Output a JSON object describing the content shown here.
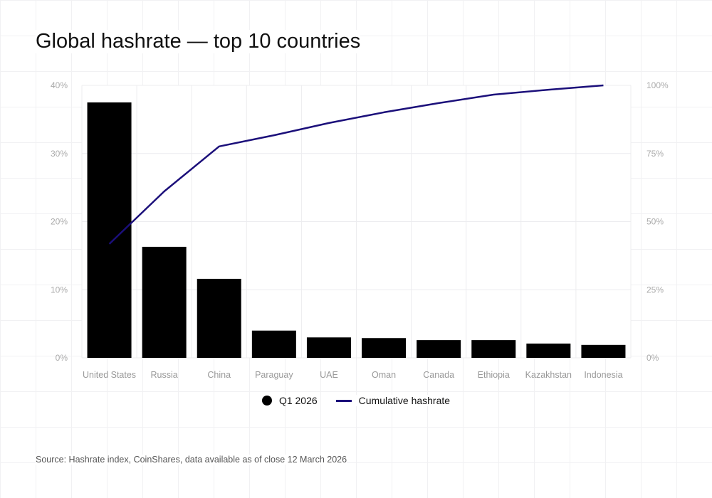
{
  "title": "Global hashrate — top 10 countries",
  "source": "Source: Hashrate index, CoinShares, data available as of close 12 March 2026",
  "chart_data": {
    "type": "bar",
    "title": "Global hashrate — top 10 countries",
    "categories": [
      "United States",
      "Russia",
      "China",
      "Paraguay",
      "UAE",
      "Oman",
      "Canada",
      "Ethiopia",
      "Kazakhstan",
      "Indonesia"
    ],
    "series": [
      {
        "name": "Q1 2026",
        "type": "bar",
        "axis": "left",
        "color": "#000000",
        "values": [
          37.5,
          16.3,
          11.6,
          4.0,
          3.0,
          2.9,
          2.6,
          2.6,
          2.1,
          1.9
        ]
      },
      {
        "name": "Cumulative hashrate",
        "type": "line",
        "axis": "right",
        "color": "#1b0f7a",
        "values": [
          41.8,
          61.1,
          77.6,
          81.7,
          86.2,
          90.1,
          93.5,
          96.6,
          98.4,
          100
        ]
      }
    ],
    "left_axis": {
      "ylim": [
        0,
        40
      ],
      "ticks": [
        "0%",
        "10%",
        "20%",
        "30%",
        "40%"
      ]
    },
    "right_axis": {
      "ylim": [
        0,
        100
      ],
      "ticks": [
        "0%",
        "25%",
        "50%",
        "75%",
        "100%"
      ]
    },
    "grid": true,
    "legend": "bottom"
  }
}
